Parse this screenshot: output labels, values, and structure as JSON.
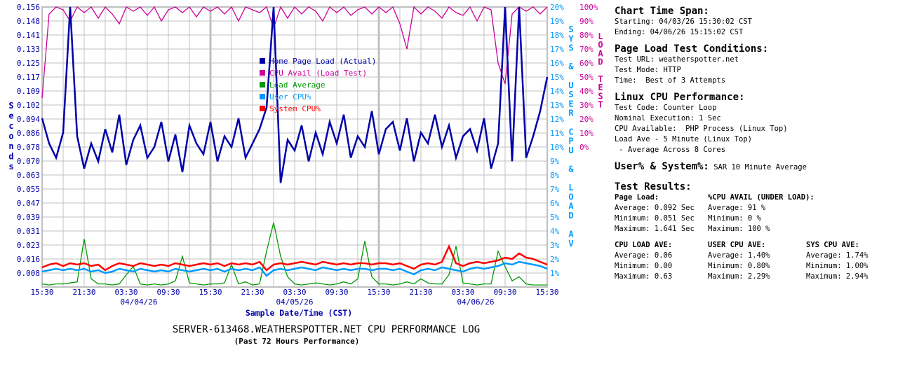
{
  "chart_data": {
    "type": "line",
    "title": "SERVER-613468.WEATHERSPOTTER.NET CPU PERFORMANCE LOG",
    "subtitle": "(Past 72 Hours Performance)",
    "xlabel": "Sample Date/Time (CST)",
    "ylabel": "Seconds",
    "y2label": "SYS & USER CPU & LOAD AV",
    "y3label": "LOAD TEST",
    "ylim": [
      0,
      0.156
    ],
    "y2lim": [
      0,
      20
    ],
    "y3lim": [
      0,
      100
    ],
    "grid": true,
    "legend_position": "top-center",
    "y_ticks": [
      "0.156",
      "0.148",
      "0.141",
      "0.133",
      "0.125",
      "0.117",
      "0.109",
      "0.102",
      "0.094",
      "0.086",
      "0.078",
      "0.070",
      "0.063",
      "0.055",
      "0.047",
      "0.039",
      "0.031",
      "0.023",
      "0.016",
      "0.008"
    ],
    "y2_ticks": [
      "20%",
      "19%",
      "18%",
      "17%",
      "16%",
      "15%",
      "14%",
      "13%",
      "12%",
      "11%",
      "10%",
      "9%",
      "8%",
      "7%",
      "6%",
      "5%",
      "4%",
      "3%",
      "2%",
      "1%"
    ],
    "y3_ticks": [
      "100%",
      "90%",
      "80%",
      "70%",
      "60%",
      "50%",
      "40%",
      "30%",
      "20%",
      "10%",
      "0%"
    ],
    "x_ticks": [
      "15:30",
      "21:30",
      "03:30",
      "09:30",
      "15:30",
      "21:30",
      "03:30",
      "09:30",
      "15:30",
      "21:30",
      "03:30",
      "09:30",
      "15:30"
    ],
    "date_labels": [
      "04/04/26",
      "04/05/26",
      "04/06/26"
    ],
    "x_hours": "0..72 hourly from 04/03/26 15:30",
    "series": [
      {
        "name": "Home Page Load (Actual)",
        "axis": "seconds",
        "color": "#0000aa",
        "values": [
          0.094,
          0.08,
          0.072,
          0.086,
          0.156,
          0.084,
          0.066,
          0.08,
          0.07,
          0.088,
          0.075,
          0.096,
          0.068,
          0.082,
          0.09,
          0.072,
          0.078,
          0.092,
          0.07,
          0.085,
          0.064,
          0.09,
          0.08,
          0.074,
          0.092,
          0.07,
          0.084,
          0.078,
          0.094,
          0.072,
          0.08,
          0.088,
          0.1,
          0.156,
          0.058,
          0.082,
          0.076,
          0.09,
          0.07,
          0.086,
          0.074,
          0.092,
          0.08,
          0.096,
          0.072,
          0.084,
          0.078,
          0.098,
          0.074,
          0.088,
          0.092,
          0.076,
          0.094,
          0.07,
          0.086,
          0.08,
          0.096,
          0.078,
          0.09,
          0.072,
          0.084,
          0.088,
          0.076,
          0.094,
          0.066,
          0.08,
          0.156,
          0.07,
          0.156,
          0.072,
          0.084,
          0.098,
          0.117
        ]
      },
      {
        "name": "CPU Avail (Load Test)",
        "axis": "load_test",
        "color": "#cc0099",
        "values": [
          35,
          95,
          100,
          98,
          90,
          100,
          96,
          100,
          92,
          100,
          95,
          88,
          100,
          97,
          100,
          94,
          100,
          90,
          98,
          100,
          96,
          100,
          93,
          100,
          97,
          100,
          95,
          100,
          90,
          100,
          98,
          96,
          100,
          85,
          100,
          92,
          100,
          95,
          100,
          97,
          90,
          100,
          96,
          100,
          94,
          98,
          100,
          95,
          100,
          96,
          100,
          88,
          70,
          100,
          95,
          100,
          97,
          92,
          100,
          96,
          94,
          100,
          90,
          100,
          98,
          60,
          45,
          95,
          100,
          97,
          100,
          95,
          100
        ]
      },
      {
        "name": "Load Average",
        "axis": "cpu_percent_scaled",
        "color": "#009900",
        "values": [
          0.03,
          0.02,
          0.03,
          0.03,
          0.04,
          0.05,
          0.47,
          0.08,
          0.03,
          0.03,
          0.02,
          0.03,
          0.12,
          0.2,
          0.03,
          0.02,
          0.03,
          0.02,
          0.03,
          0.06,
          0.3,
          0.04,
          0.03,
          0.02,
          0.03,
          0.03,
          0.04,
          0.22,
          0.03,
          0.05,
          0.02,
          0.03,
          0.35,
          0.63,
          0.3,
          0.1,
          0.03,
          0.02,
          0.03,
          0.04,
          0.03,
          0.02,
          0.03,
          0.05,
          0.03,
          0.08,
          0.45,
          0.1,
          0.03,
          0.03,
          0.02,
          0.03,
          0.05,
          0.03,
          0.08,
          0.04,
          0.03,
          0.03,
          0.12,
          0.4,
          0.04,
          0.03,
          0.02,
          0.03,
          0.03,
          0.35,
          0.2,
          0.06,
          0.1,
          0.03,
          0.02,
          0.02,
          0.02
        ]
      },
      {
        "name": "User CPU%",
        "axis": "cpu_percent",
        "color": "#0099ff",
        "values": [
          1.1,
          1.2,
          1.3,
          1.2,
          1.3,
          1.2,
          1.3,
          1.1,
          1.2,
          1.0,
          1.1,
          1.3,
          1.2,
          1.1,
          1.3,
          1.2,
          1.1,
          1.2,
          1.1,
          1.3,
          1.2,
          1.1,
          1.2,
          1.3,
          1.2,
          1.3,
          1.1,
          1.3,
          1.2,
          1.3,
          1.2,
          1.4,
          0.8,
          1.2,
          1.3,
          1.2,
          1.3,
          1.4,
          1.3,
          1.2,
          1.4,
          1.3,
          1.2,
          1.3,
          1.2,
          1.3,
          1.3,
          1.2,
          1.3,
          1.3,
          1.2,
          1.3,
          1.1,
          0.9,
          1.2,
          1.3,
          1.2,
          1.4,
          1.3,
          1.2,
          1.1,
          1.3,
          1.4,
          1.3,
          1.4,
          1.5,
          1.7,
          1.6,
          1.8,
          1.7,
          1.6,
          1.5,
          1.3
        ]
      },
      {
        "name": "System CPU%",
        "axis": "cpu_percent",
        "color": "#ff0000",
        "values": [
          1.4,
          1.6,
          1.7,
          1.5,
          1.7,
          1.6,
          1.7,
          1.5,
          1.6,
          1.2,
          1.5,
          1.7,
          1.6,
          1.5,
          1.7,
          1.6,
          1.5,
          1.6,
          1.5,
          1.7,
          1.6,
          1.5,
          1.6,
          1.7,
          1.6,
          1.7,
          1.5,
          1.7,
          1.6,
          1.7,
          1.6,
          1.8,
          1.2,
          1.6,
          1.7,
          1.6,
          1.7,
          1.8,
          1.7,
          1.6,
          1.8,
          1.7,
          1.6,
          1.7,
          1.6,
          1.7,
          1.7,
          1.6,
          1.7,
          1.7,
          1.6,
          1.7,
          1.5,
          1.3,
          1.6,
          1.7,
          1.6,
          1.8,
          2.9,
          1.7,
          1.5,
          1.7,
          1.8,
          1.7,
          1.8,
          1.9,
          2.1,
          2.0,
          2.4,
          2.1,
          2.0,
          1.8,
          1.6
        ]
      }
    ]
  },
  "panel": {
    "span_heading": "Chart Time Span:",
    "starting": "Starting: 04/03/26 15:30:02 CST",
    "ending": "Ending: 04/06/26 15:15:02 CST",
    "conditions_heading": "Page Load Test Conditions:",
    "test_url": "Test URL: weatherspotter.net",
    "test_mode": "Test Mode: HTTP",
    "time": "Time:  Best of 3 Attempts",
    "linux_heading": "Linux CPU Performance:",
    "test_code": "Test Code: Counter Loop",
    "nominal": "Nominal Execution: 1 Sec",
    "cpu_available": "CPU Available:  PHP Process (Linux Top)",
    "load_ave": "Load Ave - 5 Minute (Linux Top)",
    "load_ave_note": " - Average Across 8 Cores",
    "usersys_heading": "User% & System%:",
    "usersys_note": "SAR 10 Minute Average",
    "results_heading": "Test Results:",
    "page_load": {
      "heading": "Page Load:",
      "average": "Average: 0.092 Sec",
      "minimum": "Minimum: 0.051 Sec",
      "maximum": "Maximum: 1.641 Sec"
    },
    "cpu_avail": {
      "heading": "%CPU AVAIL (UNDER LOAD):",
      "average": "Average: 91 %",
      "minimum": "Minimum: 0 %",
      "maximum": "Maximum: 100 %"
    },
    "cpu_load": {
      "heading": "CPU LOAD AVE:",
      "average": "Average: 0.06",
      "minimum": "Minimum: 0.00",
      "maximum": "Maximum: 0.63"
    },
    "user_cpu": {
      "heading": "USER CPU AVE:",
      "average": "Average: 1.40%",
      "minimum": "Minimum: 0.80%",
      "maximum": "Maximum: 2.29%"
    },
    "sys_cpu": {
      "heading": "SYS CPU AVE:",
      "average": "Average: 1.74%",
      "minimum": "Minimum: 1.00%",
      "maximum": "Maximum: 2.94%"
    }
  }
}
